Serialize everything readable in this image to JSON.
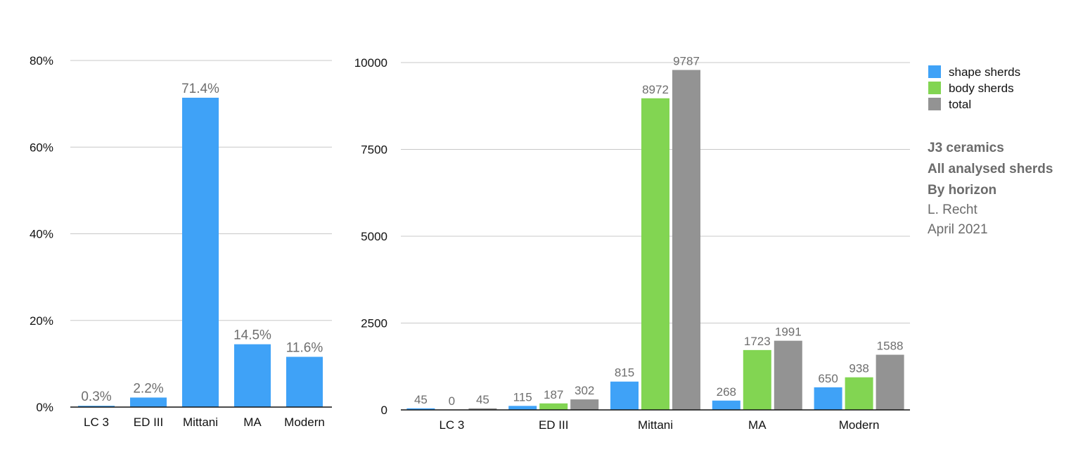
{
  "chart_data": [
    {
      "type": "bar",
      "categories": [
        "LC 3",
        "ED III",
        "Mittani",
        "MA",
        "Modern"
      ],
      "series": [
        {
          "values": [
            0.3,
            2.2,
            71.4,
            14.5,
            11.6
          ],
          "labels": [
            "0.3%",
            "2.2%",
            "71.4%",
            "14.5%",
            "11.6%"
          ],
          "color": "#3fa2f7"
        }
      ],
      "ylim": [
        0,
        80
      ],
      "yticks": [
        0,
        20,
        40,
        60,
        80
      ],
      "ytick_labels": [
        "0%",
        "20%",
        "40%",
        "60%",
        "80%"
      ],
      "grid": true
    },
    {
      "type": "bar",
      "categories": [
        "LC 3",
        "ED III",
        "Mittani",
        "MA",
        "Modern"
      ],
      "series": [
        {
          "name": "shape sherds",
          "values": [
            45,
            115,
            815,
            268,
            650
          ],
          "color": "#3fa2f7"
        },
        {
          "name": "body sherds",
          "values": [
            0,
            187,
            8972,
            1723,
            938
          ],
          "color": "#82d552"
        },
        {
          "name": "total",
          "values": [
            45,
            302,
            9787,
            1991,
            1588
          ],
          "color": "#939393"
        }
      ],
      "ylim": [
        0,
        10000
      ],
      "yticks": [
        0,
        2500,
        5000,
        7500,
        10000
      ],
      "ytick_labels": [
        "0",
        "2500",
        "5000",
        "7500",
        "10000"
      ],
      "grid": true,
      "legend": "right"
    }
  ],
  "notes": {
    "bold_lines": [
      "J3 ceramics",
      "All analysed sherds",
      "By horizon"
    ],
    "plain_lines": [
      "L. Recht",
      "April 2021"
    ]
  }
}
